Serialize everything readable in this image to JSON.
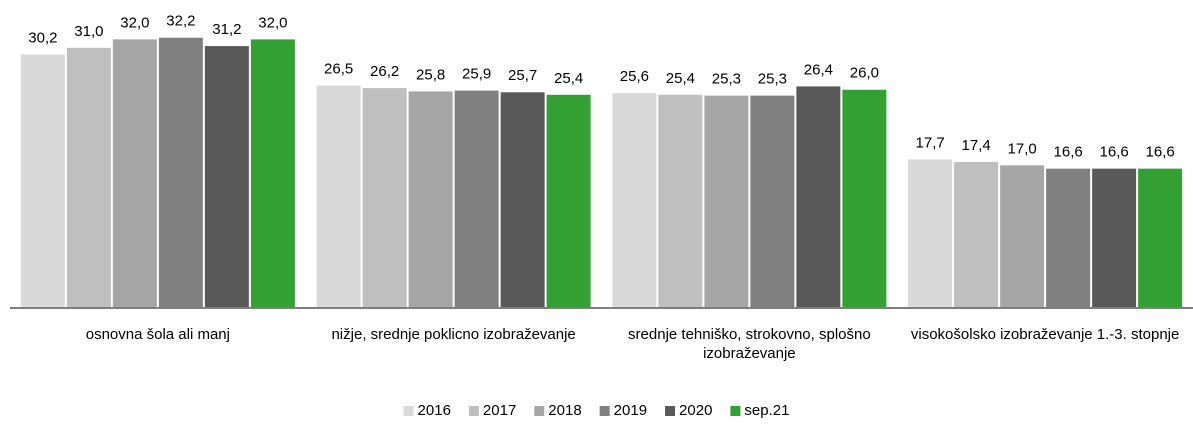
{
  "chart_data": {
    "type": "bar",
    "categories": [
      "osnovna šola ali manj",
      "nižje, srednje poklicno izobraževanje",
      "srednje tehniško, strokovno, splošno izobraževanje",
      "visokošolsko izobraževanje 1.-3. stopnje"
    ],
    "ylim": [
      0,
      33
    ],
    "legend": "bottom",
    "series": [
      {
        "name": "2016",
        "color": "#d9d9d9",
        "values": [
          30.2,
          26.5,
          25.6,
          17.7
        ],
        "value_labels": [
          "30,2",
          "26,5",
          "25,6",
          "17,7"
        ]
      },
      {
        "name": "2017",
        "color": "#bfbfbf",
        "values": [
          31.0,
          26.2,
          25.4,
          17.4
        ],
        "value_labels": [
          "31,0",
          "26,2",
          "25,4",
          "17,4"
        ]
      },
      {
        "name": "2018",
        "color": "#a6a6a6",
        "values": [
          32.0,
          25.8,
          25.3,
          17.0
        ],
        "value_labels": [
          "32,0",
          "25,8",
          "25,3",
          "17,0"
        ]
      },
      {
        "name": "2019",
        "color": "#808080",
        "values": [
          32.2,
          25.9,
          25.3,
          16.6
        ],
        "value_labels": [
          "32,2",
          "25,9",
          "25,3",
          "16,6"
        ]
      },
      {
        "name": "2020",
        "color": "#595959",
        "values": [
          31.2,
          25.7,
          26.4,
          16.6
        ],
        "value_labels": [
          "31,2",
          "25,7",
          "26,4",
          "16,6"
        ]
      },
      {
        "name": "sep.21",
        "color": "#33a034",
        "values": [
          32.0,
          25.4,
          26.0,
          16.6
        ],
        "value_labels": [
          "32,0",
          "25,4",
          "26,0",
          "16,6"
        ]
      }
    ]
  }
}
